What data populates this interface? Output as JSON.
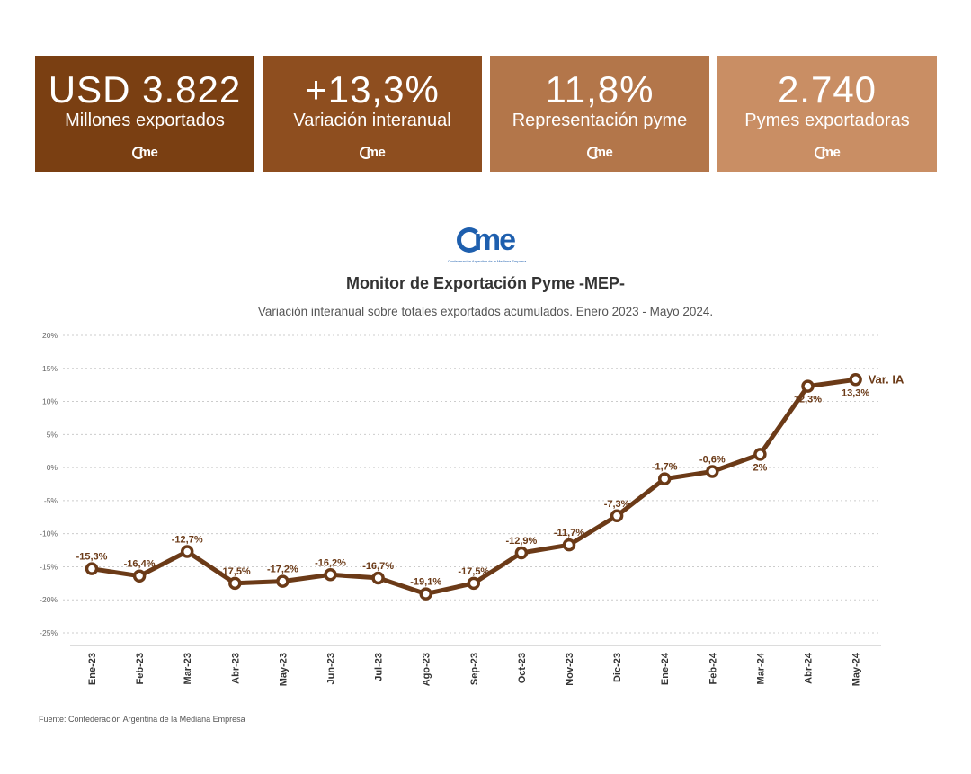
{
  "kpis": [
    {
      "value": "USD 3.822",
      "label": "Millones exportados",
      "brand": "me"
    },
    {
      "value": "+13,3%",
      "label": "Variación interanual",
      "brand": "me"
    },
    {
      "value": "11,8%",
      "label": "Representación pyme",
      "brand": "me"
    },
    {
      "value": "2.740",
      "label": "Pymes exportadoras",
      "brand": "me"
    }
  ],
  "logo": {
    "mark": "me",
    "subtitle": "Confederación Argentina de la Mediana Empresa"
  },
  "colors": {
    "line": "#6b3a17",
    "marker_fill": "#ffffff",
    "grid": "#cccccc",
    "brand_blue": "#1e5fae"
  },
  "source": "Fuente: Confederación Argentina de la Mediana Empresa",
  "chart_data": {
    "type": "line",
    "title": "Monitor de Exportación Pyme -MEP-",
    "subtitle": "Variación interanual sobre totales exportados acumulados. Enero 2023 - Mayo 2024.",
    "xlabel": "",
    "ylabel": "",
    "ylim": [
      -25,
      20
    ],
    "yticks": [
      20,
      15,
      10,
      5,
      0,
      -5,
      -10,
      -15,
      -20,
      -25
    ],
    "ytick_labels": [
      "20%",
      "15%",
      "10%",
      "5%",
      "0%",
      "-5%",
      "-10%",
      "-15%",
      "-20%",
      "-25%"
    ],
    "grid": true,
    "categories": [
      "Ene-23",
      "Feb-23",
      "Mar-23",
      "Abr-23",
      "May-23",
      "Jun-23",
      "Jul-23",
      "Ago-23",
      "Sep-23",
      "Oct-23",
      "Nov-23",
      "Dic-23",
      "Ene-24",
      "Feb-24",
      "Mar-24",
      "Abr-24",
      "May-24"
    ],
    "series": [
      {
        "name": "Var. IA",
        "values": [
          -15.3,
          -16.4,
          -12.7,
          -17.5,
          -17.2,
          -16.2,
          -16.7,
          -19.1,
          -17.5,
          -12.9,
          -11.7,
          -7.3,
          -1.7,
          -0.6,
          2,
          12.3,
          13.3
        ],
        "labels": [
          "-15,3%",
          "-16,4%",
          "-12,7%",
          "-17,5%",
          "-17,2%",
          "-16,2%",
          "-16,7%",
          "-19,1%",
          "-17,5%",
          "-12,9%",
          "-11,7%",
          "-7,3%",
          "-1,7%",
          "-0,6%",
          "2%",
          "12,3%",
          "13,3%"
        ]
      }
    ]
  }
}
